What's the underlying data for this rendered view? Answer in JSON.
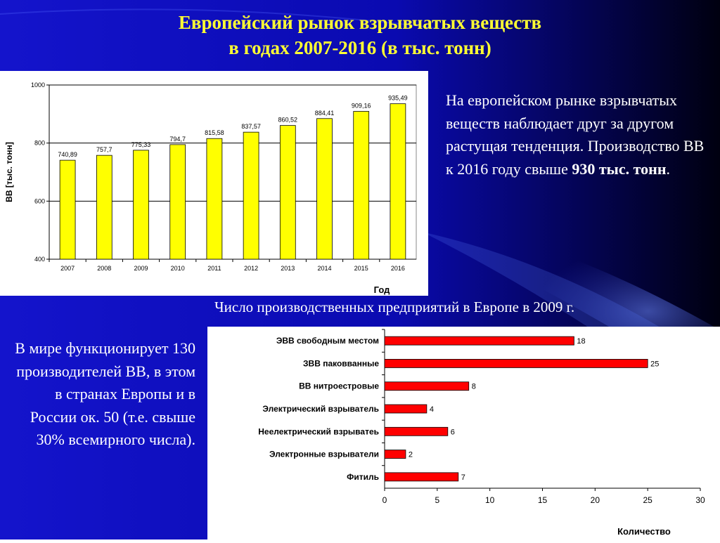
{
  "title": {
    "line1": "Европейский рынок взрывчатых веществ",
    "line2": "в годах 2007-2016 (в тыс. тонн)"
  },
  "right_text": {
    "before": "На европейском рынке взрывчатых веществ наблюдает друг за другом растущая тенденция. Производство ВВ к 2016 году свыше ",
    "bold": "930 тыс. тонн",
    "after": "."
  },
  "caption": "Число производственных предприятий в Европе в 2009 г.",
  "left_text": "В мире функционирует 130 производителей ВВ, в этом в странах Европы и в России ок. 50 (т.е. свыше 30% всемирного числа).",
  "colors": {
    "title": "#ffff33",
    "bar1": "#ffff00",
    "bar2": "#ff0000"
  },
  "chart_data": [
    {
      "type": "bar",
      "categories": [
        "2007",
        "2008",
        "2009",
        "2010",
        "2011",
        "2012",
        "2013",
        "2014",
        "2015",
        "2016"
      ],
      "values": [
        740.89,
        757.7,
        775.33,
        794.7,
        815.58,
        837.57,
        860.52,
        884.41,
        909.16,
        935.49
      ],
      "value_labels": [
        "740,89",
        "757,7",
        "775,33",
        "794,7",
        "815,58",
        "837,57",
        "860,52",
        "884,41",
        "909,16",
        "935,49"
      ],
      "xlabel": "Год",
      "ylabel": "ВВ [тыс. тонн]",
      "ylim": [
        400,
        1000
      ],
      "yticks": [
        400,
        600,
        800,
        1000
      ],
      "grid": true
    },
    {
      "type": "bar",
      "orientation": "horizontal",
      "categories": [
        "ЭВВ свободным местом",
        "ЗВВ паковванные",
        "ВВ нитроестровые",
        "Электрический взрыватель",
        "Неелектрический взрыватеь",
        "Электронные взрыватели",
        "Фитиль"
      ],
      "values": [
        18,
        25,
        8,
        4,
        6,
        2,
        7
      ],
      "xlabel": "Количество",
      "xlim": [
        0,
        30
      ],
      "xticks": [
        0,
        5,
        10,
        15,
        20,
        25,
        30
      ],
      "grid": false
    }
  ]
}
